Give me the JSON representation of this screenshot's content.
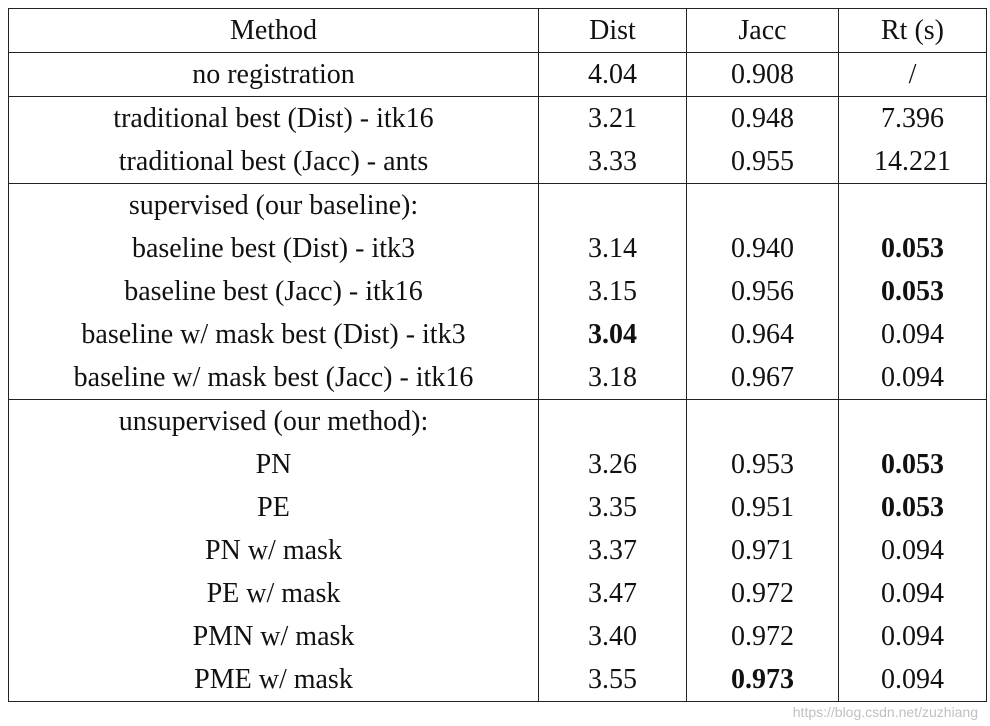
{
  "table": {
    "header": [
      "Method",
      "Dist",
      "Jacc",
      "Rt (s)"
    ],
    "rows": [
      [
        "no registration",
        "4.04",
        "0.908",
        "/"
      ],
      [
        "traditional best (Dist) - itk16",
        "3.21",
        "0.948",
        "7.396"
      ],
      [
        "traditional best (Jacc) - ants",
        "3.33",
        "0.955",
        "14.221"
      ],
      [
        "supervised (our baseline):"
      ],
      [
        "baseline best (Dist) - itk3",
        "3.14",
        "0.940",
        "0.053"
      ],
      [
        "baseline best (Jacc) - itk16",
        "3.15",
        "0.956",
        "0.053"
      ],
      [
        "baseline w/ mask best (Dist) - itk3",
        "3.04",
        "0.964",
        "0.094"
      ],
      [
        "baseline w/ mask best (Jacc) - itk16",
        "3.18",
        "0.967",
        "0.094"
      ],
      [
        "unsupervised (our method):"
      ],
      [
        "PN",
        "3.26",
        "0.953",
        "0.053"
      ],
      [
        "PE",
        "3.35",
        "0.951",
        "0.053"
      ],
      [
        "PN w/ mask",
        "3.37",
        "0.971",
        "0.094"
      ],
      [
        "PE w/ mask",
        "3.47",
        "0.972",
        "0.094"
      ],
      [
        "PMN w/ mask",
        "3.40",
        "0.972",
        "0.094"
      ],
      [
        "PME w/ mask",
        "3.55",
        "0.973",
        "0.094"
      ]
    ],
    "watermark": "https://blog.csdn.net/zuzhiang"
  }
}
